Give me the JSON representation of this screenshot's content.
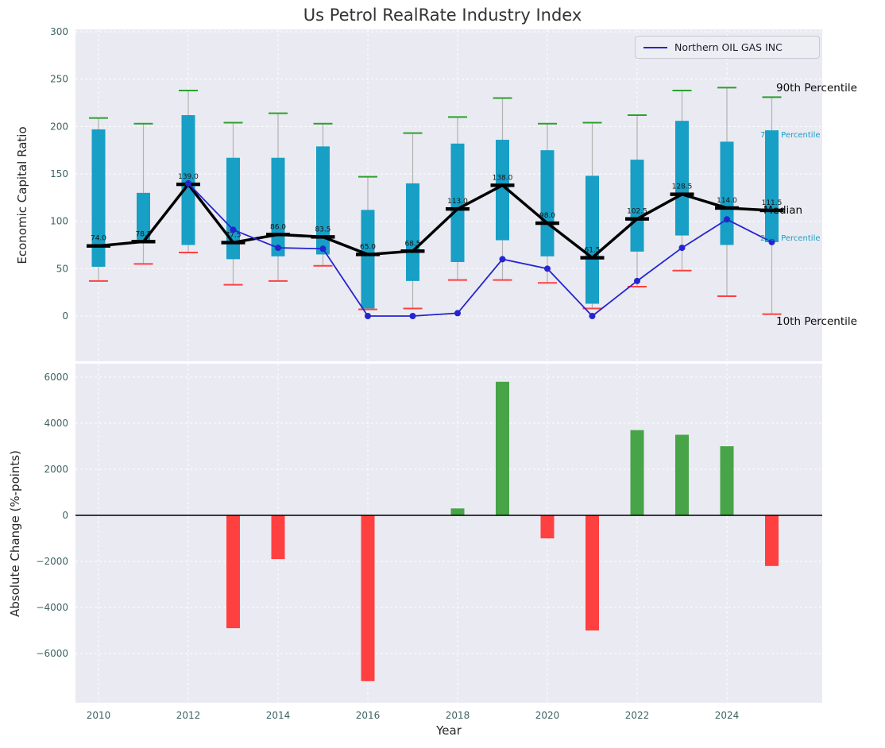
{
  "title": "Us Petrol RealRate Industry Index",
  "legend": {
    "series_label": "Northern OIL GAS INC"
  },
  "axes": {
    "top": {
      "ylabel": "Economic Capital Ratio"
    },
    "bottom": {
      "ylabel": "Absolute Change (%-points)",
      "xlabel": "Year"
    }
  },
  "annotations": {
    "p90": "90th Percentile",
    "p75": "75th Percentile",
    "median": "Median",
    "p25": "25th Percentile",
    "p10": "10th Percentile"
  },
  "colors": {
    "box": "#179fc5",
    "whisker": "#b3b3b3",
    "cap_top": "#2ca02c",
    "cap_bottom": "#ff4040",
    "median": "#000000",
    "company_line": "#2525d0",
    "bar_positive": "#47a447",
    "bar_negative": "#ff4040",
    "panel_bg": "#eaeaf2",
    "grid": "#ffffff",
    "tick_label": "#3d6262",
    "text": "#262626"
  },
  "chart_data": [
    {
      "type": "box-percentile-timeseries",
      "title": "Us Petrol RealRate Industry Index",
      "ylabel": "Economic Capital Ratio",
      "ylim": [
        -48,
        302
      ],
      "yticks": [
        0,
        50,
        100,
        150,
        200,
        250,
        300
      ],
      "xticks": [
        2010,
        2012,
        2014,
        2016,
        2018,
        2020,
        2022,
        2024
      ],
      "years": [
        2010,
        2011,
        2012,
        2013,
        2014,
        2015,
        2016,
        2017,
        2018,
        2019,
        2020,
        2021,
        2022,
        2023,
        2024,
        2025
      ],
      "p90": [
        209,
        203,
        238,
        204,
        214,
        203,
        147,
        193,
        210,
        230,
        203,
        204,
        212,
        238,
        241,
        231
      ],
      "p75": [
        197,
        130,
        212,
        167,
        167,
        179,
        112,
        140,
        182,
        186,
        175,
        148,
        165,
        206,
        184,
        196
      ],
      "median": [
        74.0,
        78.5,
        139.0,
        77.5,
        86.0,
        83.5,
        65.0,
        68.5,
        113.0,
        138.0,
        98.0,
        61.5,
        102.5,
        128.5,
        114.0,
        111.5
      ],
      "p25": [
        52,
        78,
        75,
        60,
        63,
        65,
        8,
        37,
        57,
        80,
        63,
        13,
        68,
        85,
        75,
        78
      ],
      "p10": [
        37,
        55,
        67,
        33,
        37,
        53,
        7,
        8,
        38,
        38,
        35,
        8,
        31,
        48,
        21,
        2
      ],
      "company_series": {
        "name": "Northern OIL GAS INC",
        "years": [
          2012,
          2013,
          2014,
          2015,
          2016,
          2017,
          2018,
          2019,
          2020,
          2021,
          2022,
          2023,
          2024,
          2025
        ],
        "values": [
          140,
          91,
          72,
          71,
          0,
          0,
          3,
          60,
          50,
          0,
          37,
          72,
          102,
          78
        ]
      },
      "legend_position": "upper right",
      "grid": true
    },
    {
      "type": "bar",
      "ylabel": "Absolute Change (%-points)",
      "xlabel": "Year",
      "ylim": [
        -8100,
        6600
      ],
      "yticks": [
        -6000,
        -4000,
        -2000,
        0,
        2000,
        4000,
        6000
      ],
      "xticks": [
        2010,
        2012,
        2014,
        2016,
        2018,
        2020,
        2022,
        2024
      ],
      "years": [
        2010,
        2011,
        2012,
        2013,
        2014,
        2015,
        2016,
        2017,
        2018,
        2019,
        2020,
        2021,
        2022,
        2023,
        2024,
        2025
      ],
      "values": [
        0,
        0,
        0,
        -4900,
        -1900,
        0,
        -7200,
        0,
        300,
        5800,
        -1000,
        -5000,
        3700,
        3500,
        3000,
        -2200
      ],
      "grid": true
    }
  ]
}
